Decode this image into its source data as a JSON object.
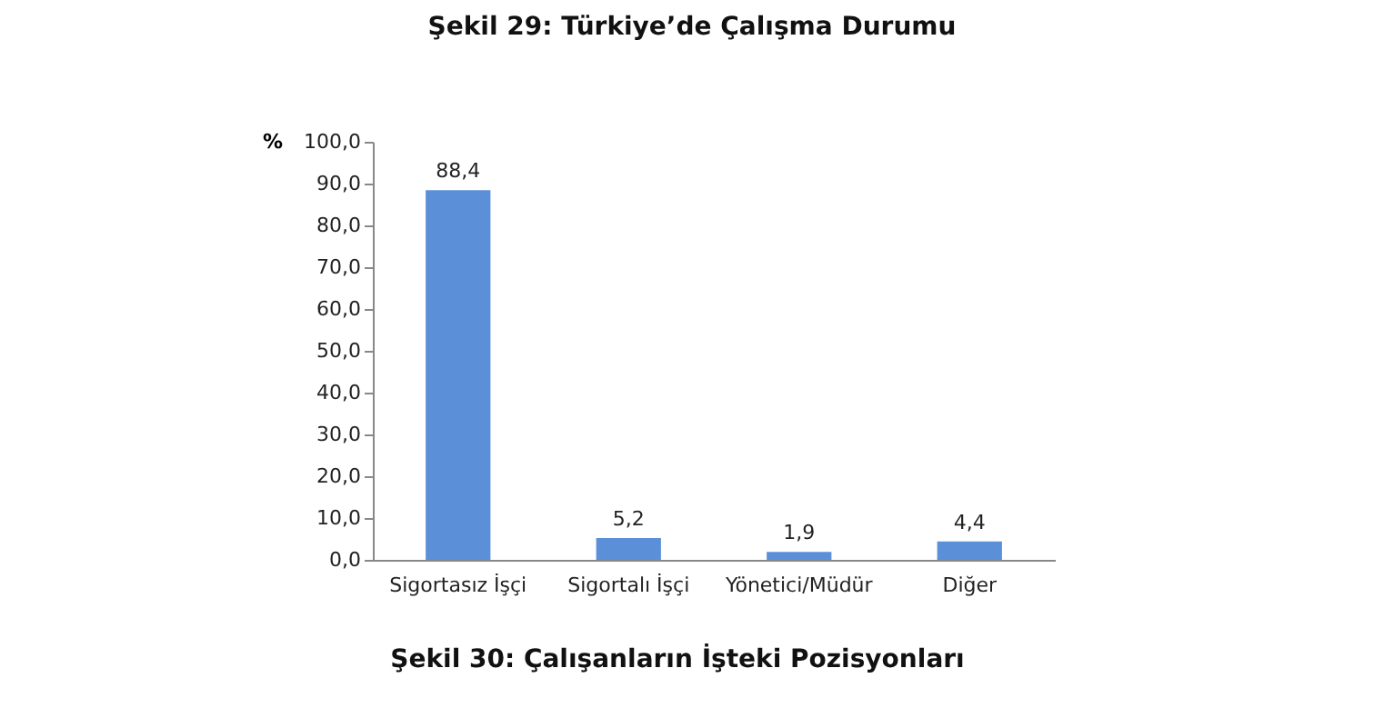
{
  "chart_data": {
    "type": "bar",
    "title": "Şekil 29: Türkiye’de Çalışma Durumu",
    "ylabel": "%",
    "categories": [
      "Sigortasız İşçi",
      "Sigortalı İşçi",
      "Yönetici/Müdür",
      "Diğer"
    ],
    "values": [
      88.4,
      5.2,
      1.9,
      4.4
    ],
    "color": "#5b8fd8",
    "value_labels": [
      "88,4",
      "5,2",
      "1,9",
      "4,4"
    ],
    "ylim": [
      0,
      100
    ],
    "yticks": [
      {
        "value": 0,
        "label": "0,0"
      },
      {
        "value": 10,
        "label": "10,0"
      },
      {
        "value": 20,
        "label": "20,0"
      },
      {
        "value": 30,
        "label": "30,0"
      },
      {
        "value": 40,
        "label": "40,0"
      },
      {
        "value": 50,
        "label": "50,0"
      },
      {
        "value": 60,
        "label": "60,0"
      },
      {
        "value": 70,
        "label": "70,0"
      },
      {
        "value": 80,
        "label": "80,0"
      },
      {
        "value": 90,
        "label": "90,0"
      },
      {
        "value": 100,
        "label": "100,0"
      }
    ],
    "grid": false,
    "annotations": [
      "Şekil 30: Çalışanların İşteki Pozisyonları"
    ]
  }
}
